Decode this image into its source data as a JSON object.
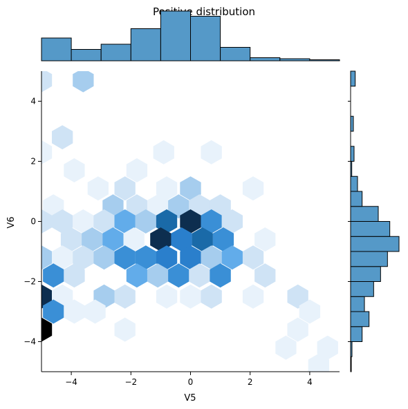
{
  "chart_data": {
    "type": "heatmap",
    "subtype": "hexbin-joint-plot",
    "title": "Positive distribution",
    "xlabel": "V5",
    "ylabel": "V6",
    "xlim": [
      -5,
      5
    ],
    "ylim": [
      -5,
      5
    ],
    "xticks": [
      -4,
      -2,
      0,
      2,
      4
    ],
    "yticks": [
      -4,
      -2,
      0,
      2,
      4
    ],
    "xtick_labels": [
      "−4",
      "−2",
      "0",
      "2",
      "4"
    ],
    "ytick_labels": [
      "−4",
      "−2",
      "0",
      "2",
      "4"
    ],
    "grid": false,
    "colors": {
      "hist_fill": "#5599c8",
      "hist_edge": "#000000",
      "colormap": [
        "#e8f2fb",
        "#cfe3f5",
        "#a6cdee",
        "#62acea",
        "#3a8fd6",
        "#2a7fcc",
        "#1a6aa8",
        "#0d2e4f",
        "#000000"
      ]
    },
    "hexbin": {
      "gridsize": 14,
      "max_level": 8,
      "cells": [
        {
          "x": -5.0,
          "y": 4.7,
          "level": 1
        },
        {
          "x": -3.6,
          "y": 4.7,
          "level": 2
        },
        {
          "x": -4.3,
          "y": 2.8,
          "level": 1
        },
        {
          "x": -5.0,
          "y": 2.3,
          "level": 0
        },
        {
          "x": -3.9,
          "y": 1.7,
          "level": 0
        },
        {
          "x": -0.9,
          "y": 2.3,
          "level": 0
        },
        {
          "x": 0.7,
          "y": 2.3,
          "level": 0
        },
        {
          "x": -1.8,
          "y": 1.7,
          "level": 0
        },
        {
          "x": -3.1,
          "y": 1.1,
          "level": 0
        },
        {
          "x": -2.2,
          "y": 1.1,
          "level": 1
        },
        {
          "x": -0.8,
          "y": 1.1,
          "level": 0
        },
        {
          "x": 0.0,
          "y": 1.1,
          "level": 2
        },
        {
          "x": 2.1,
          "y": 1.1,
          "level": 0
        },
        {
          "x": -4.6,
          "y": 0.5,
          "level": 0
        },
        {
          "x": -2.6,
          "y": 0.5,
          "level": 2
        },
        {
          "x": -1.8,
          "y": 0.5,
          "level": 1
        },
        {
          "x": -1.1,
          "y": 0.5,
          "level": 0
        },
        {
          "x": -0.4,
          "y": 0.5,
          "level": 2
        },
        {
          "x": 0.3,
          "y": 0.5,
          "level": 1
        },
        {
          "x": 1.0,
          "y": 0.5,
          "level": 1
        },
        {
          "x": -5.0,
          "y": 0.0,
          "level": 1
        },
        {
          "x": -4.3,
          "y": 0.0,
          "level": 1
        },
        {
          "x": -3.6,
          "y": 0.0,
          "level": 0
        },
        {
          "x": -2.9,
          "y": 0.0,
          "level": 1
        },
        {
          "x": -2.2,
          "y": 0.0,
          "level": 3
        },
        {
          "x": -1.5,
          "y": 0.0,
          "level": 2
        },
        {
          "x": -0.8,
          "y": 0.0,
          "level": 6
        },
        {
          "x": 0.0,
          "y": 0.0,
          "level": 7
        },
        {
          "x": 0.7,
          "y": 0.0,
          "level": 4
        },
        {
          "x": 1.4,
          "y": 0.0,
          "level": 1
        },
        {
          "x": -4.0,
          "y": -0.6,
          "level": 1
        },
        {
          "x": -3.3,
          "y": -0.6,
          "level": 2
        },
        {
          "x": -2.6,
          "y": -0.6,
          "level": 3
        },
        {
          "x": -1.9,
          "y": -0.6,
          "level": 0
        },
        {
          "x": -1.0,
          "y": -0.6,
          "level": 7
        },
        {
          "x": -0.3,
          "y": -0.6,
          "level": 5
        },
        {
          "x": 0.4,
          "y": -0.6,
          "level": 6
        },
        {
          "x": 1.1,
          "y": -0.6,
          "level": 4
        },
        {
          "x": 2.5,
          "y": -0.6,
          "level": 0
        },
        {
          "x": -5.0,
          "y": -1.2,
          "level": 2
        },
        {
          "x": -4.3,
          "y": -1.2,
          "level": 0
        },
        {
          "x": -3.6,
          "y": -1.2,
          "level": 1
        },
        {
          "x": -2.9,
          "y": -1.2,
          "level": 2
        },
        {
          "x": -2.2,
          "y": -1.2,
          "level": 4
        },
        {
          "x": -1.5,
          "y": -1.2,
          "level": 4
        },
        {
          "x": -0.8,
          "y": -1.2,
          "level": 5
        },
        {
          "x": 0.0,
          "y": -1.2,
          "level": 5
        },
        {
          "x": 0.7,
          "y": -1.2,
          "level": 2
        },
        {
          "x": 1.4,
          "y": -1.2,
          "level": 3
        },
        {
          "x": 2.1,
          "y": -1.2,
          "level": 1
        },
        {
          "x": -4.6,
          "y": -1.8,
          "level": 4
        },
        {
          "x": -3.9,
          "y": -1.8,
          "level": 1
        },
        {
          "x": -1.8,
          "y": -1.8,
          "level": 3
        },
        {
          "x": -1.1,
          "y": -1.8,
          "level": 2
        },
        {
          "x": -0.4,
          "y": -1.8,
          "level": 4
        },
        {
          "x": 0.3,
          "y": -1.8,
          "level": 1
        },
        {
          "x": 1.0,
          "y": -1.8,
          "level": 4
        },
        {
          "x": 2.5,
          "y": -1.8,
          "level": 1
        },
        {
          "x": -5.0,
          "y": -2.5,
          "level": 7
        },
        {
          "x": -4.3,
          "y": -2.5,
          "level": 0
        },
        {
          "x": -2.9,
          "y": -2.5,
          "level": 2
        },
        {
          "x": -2.2,
          "y": -2.5,
          "level": 1
        },
        {
          "x": -0.8,
          "y": -2.5,
          "level": 0
        },
        {
          "x": 0.0,
          "y": -2.5,
          "level": 0
        },
        {
          "x": 0.7,
          "y": -2.5,
          "level": 1
        },
        {
          "x": 2.1,
          "y": -2.5,
          "level": 0
        },
        {
          "x": 3.6,
          "y": -2.5,
          "level": 1
        },
        {
          "x": -4.6,
          "y": -3.0,
          "level": 4
        },
        {
          "x": -3.9,
          "y": -3.0,
          "level": 0
        },
        {
          "x": -3.2,
          "y": -3.0,
          "level": 0
        },
        {
          "x": 4.0,
          "y": -3.0,
          "level": 0
        },
        {
          "x": -2.2,
          "y": -3.6,
          "level": 0
        },
        {
          "x": 3.6,
          "y": -3.6,
          "level": 0
        },
        {
          "x": -5.0,
          "y": -3.6,
          "level": 8
        },
        {
          "x": 3.2,
          "y": -4.2,
          "level": 0
        },
        {
          "x": 4.6,
          "y": -4.2,
          "level": 0
        },
        {
          "x": 4.3,
          "y": -4.8,
          "level": 0
        }
      ]
    },
    "marginal_x": {
      "bin_edges": [
        -5,
        -4,
        -3,
        -2,
        -1,
        0,
        1,
        2,
        3,
        4,
        5
      ],
      "counts": [
        22,
        11,
        16,
        31,
        48,
        43,
        13,
        3,
        2,
        1
      ]
    },
    "marginal_y": {
      "bin_edges": [
        -5,
        -4.5,
        -4,
        -3.5,
        -3,
        -2.5,
        -2,
        -1.5,
        -1,
        -0.5,
        0,
        0.5,
        1,
        1.5,
        2,
        2.5,
        3,
        3.5,
        4,
        4.5,
        5
      ],
      "counts": [
        0.3,
        0.6,
        5,
        8,
        6,
        10,
        13,
        16,
        21,
        17,
        12,
        5,
        3,
        0.5,
        1.5,
        0,
        1.2,
        0,
        0,
        2
      ]
    }
  }
}
